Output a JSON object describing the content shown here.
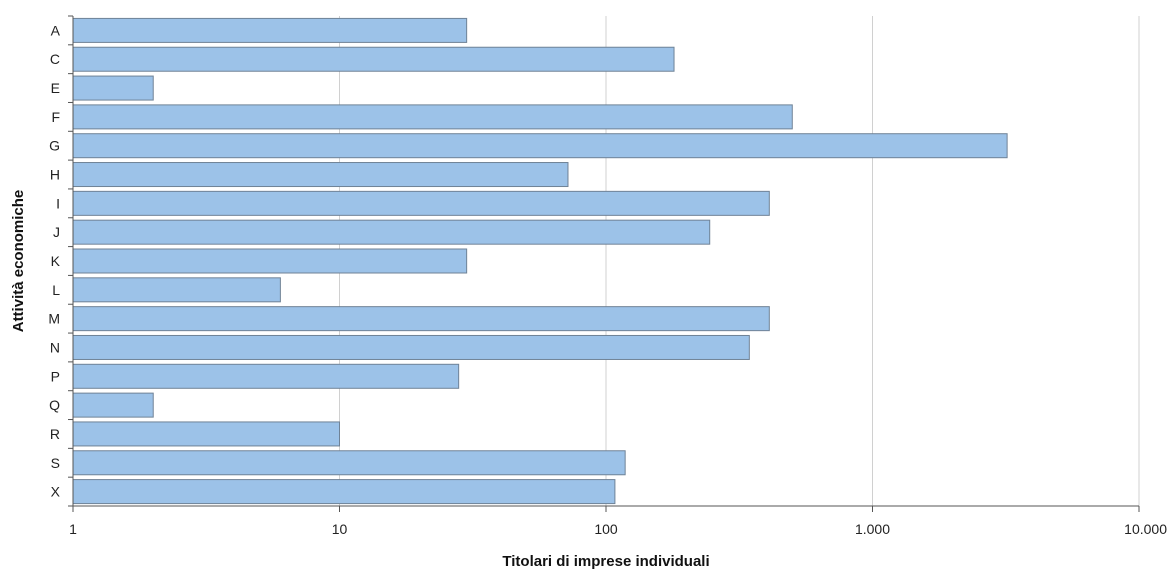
{
  "chart_data": {
    "type": "bar",
    "orientation": "horizontal",
    "categories": [
      "A",
      "C",
      "E",
      "F",
      "G",
      "H",
      "I",
      "J",
      "K",
      "L",
      "M",
      "N",
      "P",
      "Q",
      "R",
      "S",
      "X"
    ],
    "values": [
      30,
      180,
      2,
      500,
      3200,
      72,
      410,
      245,
      30,
      6,
      410,
      345,
      28,
      2,
      10,
      118,
      108
    ],
    "xlabel": "Titolari di imprese individuali",
    "ylabel": "Attività economiche",
    "xscale": "log",
    "xlim": [
      1,
      10000
    ],
    "xticks": [
      1,
      10,
      100,
      1000,
      10000
    ],
    "xtick_labels": [
      "1",
      "10",
      "100",
      "1.000",
      "10.000"
    ],
    "grid": "vertical",
    "colors": {
      "bar_fill": "#9cc2e8",
      "bar_stroke": "#6f8296",
      "grid": "#d0d0d0",
      "axis": "#555555"
    }
  }
}
